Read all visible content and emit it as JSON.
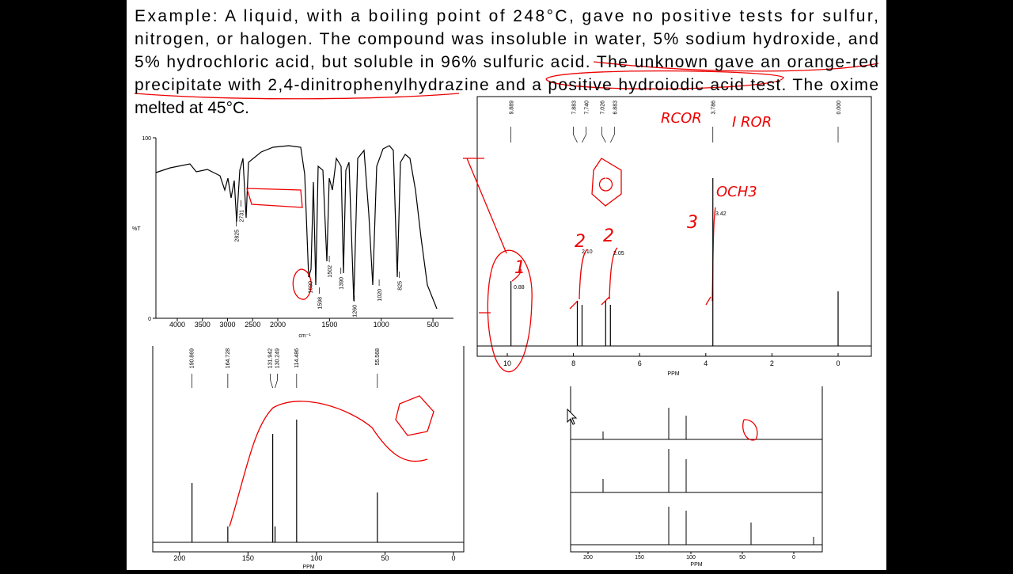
{
  "problem": {
    "lines": [
      "Example: A liquid, with a boiling point of 248°C, gave no positive tests for sulfur,",
      "nitrogen, or halogen. The compound was insoluble in water, 5% sodium hydroxide, and",
      "5% hydrochloric acid, but soluble in 96% sulfuric acid. The unknown gave an orange-red",
      "precipitate with 2,4-dinitrophenylhydrazine and a positive hydroiodic acid test. The oxime",
      "melted at 45°C."
    ]
  },
  "ir": {
    "ylabel": "%T",
    "yticks": [
      100,
      0
    ],
    "xticks": [
      4000,
      3500,
      3000,
      2500,
      2000,
      1500,
      1000,
      500
    ],
    "xlabel": "cm⁻¹",
    "peaks": [
      2825,
      2731,
      1690,
      1598,
      1502,
      1390,
      1260,
      1020,
      825
    ]
  },
  "hnmr": {
    "peaks": [
      {
        "value": 9.889,
        "label": "9.889"
      },
      {
        "value": 7.883,
        "label": "7.883"
      },
      {
        "value": 7.74,
        "label": "7.740"
      },
      {
        "value": 7.026,
        "label": "7.026"
      },
      {
        "value": 6.883,
        "label": "6.883"
      },
      {
        "value": 3.786,
        "label": "3.786"
      },
      {
        "value": 0,
        "label": "0.000"
      }
    ],
    "integrals": [
      "0.88",
      "2.10",
      "2.05",
      "3.42"
    ],
    "xticks": [
      10,
      8,
      6,
      4,
      2,
      0
    ],
    "xlabel": "PPM"
  },
  "cnmr": {
    "peaks": [
      190.869,
      164.728,
      131.942,
      {
        "value": 130.249,
        "label": "130.249"
      },
      114.486,
      55.568
    ],
    "xticks": [
      200,
      150,
      100,
      50,
      0
    ],
    "xlabel": "PPM"
  },
  "dept": {
    "xticks": [
      200,
      150,
      100,
      50,
      0
    ],
    "xlabel": "PPM"
  },
  "annotations": [
    "3",
    "2",
    "2",
    "1",
    "OCH3",
    "RCOR",
    "I ROR"
  ]
}
